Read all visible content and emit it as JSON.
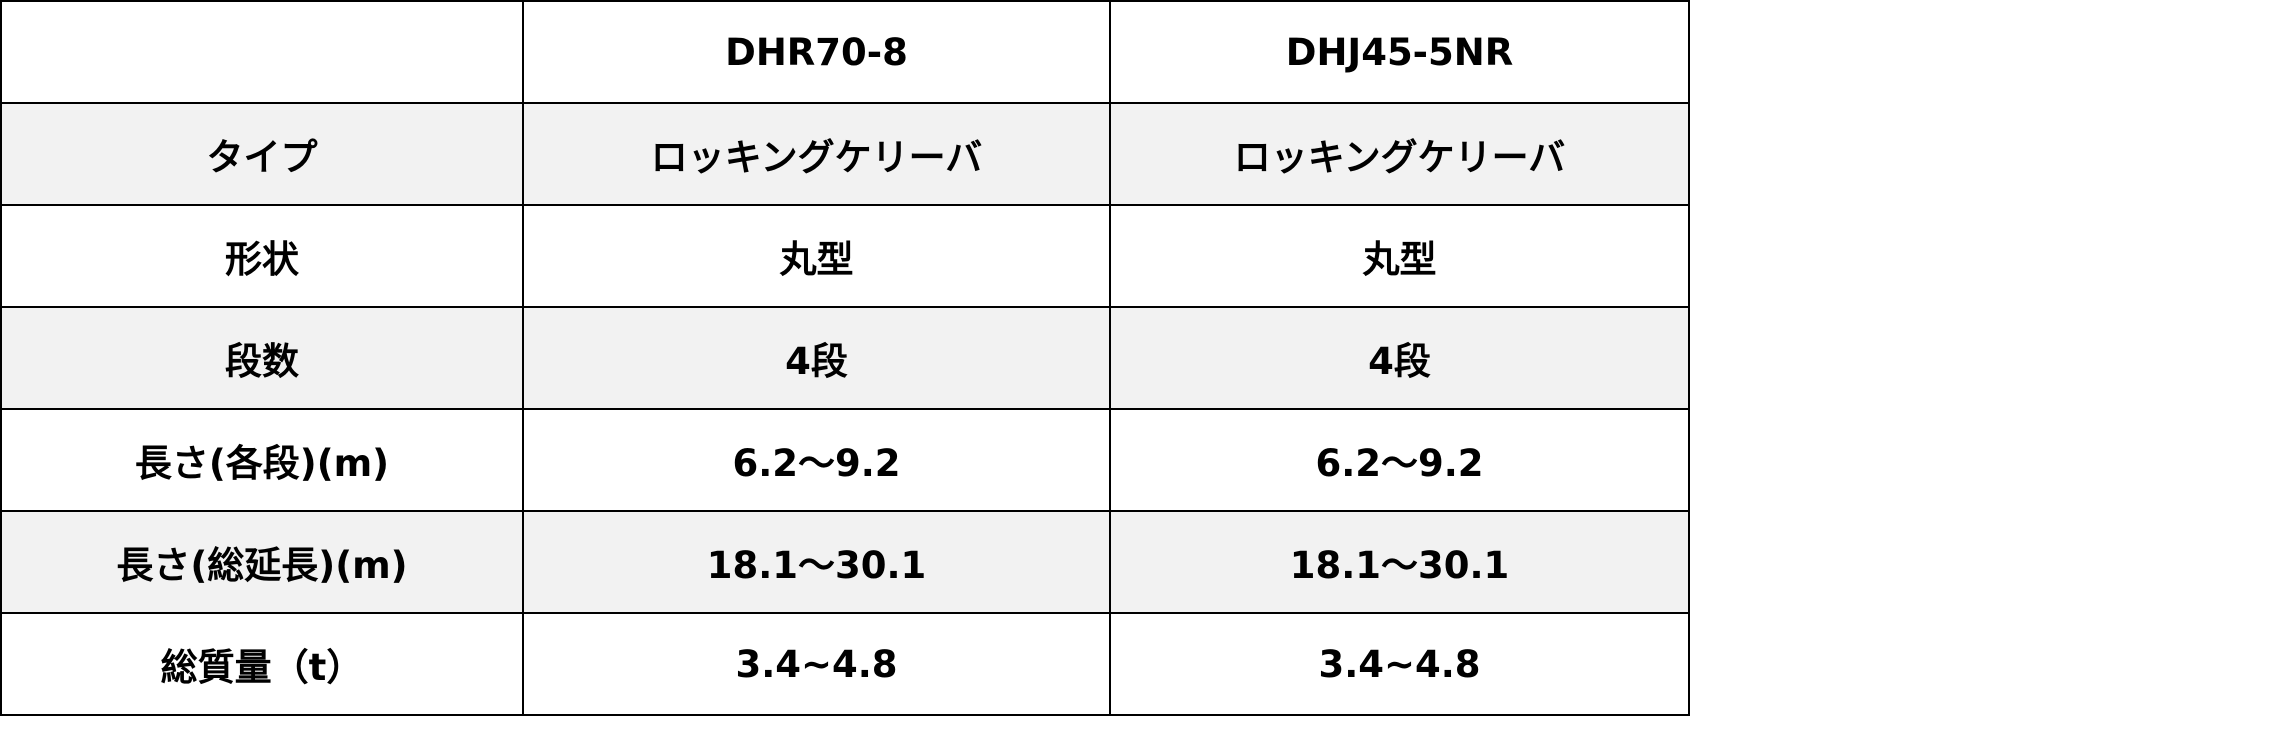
{
  "table": {
    "header": [
      "DHR70-8",
      "DHJ45-5NR"
    ],
    "rows": [
      [
        "タイプ",
        "ロッキングケリーバ",
        "ロッキングケリーバ"
      ],
      [
        "形状",
        "丸型",
        "丸型"
      ],
      [
        "段数",
        "4段",
        "4段"
      ],
      [
        "長さ(各段)(m)",
        "6.2～9.2",
        "6.2～9.2"
      ],
      [
        "長さ(総延長)(m)",
        "18.1～30.1",
        "18.1～30.1"
      ],
      [
        "総質量（t）",
        "3.4~4.8",
        "3.4~4.8"
      ]
    ]
  }
}
